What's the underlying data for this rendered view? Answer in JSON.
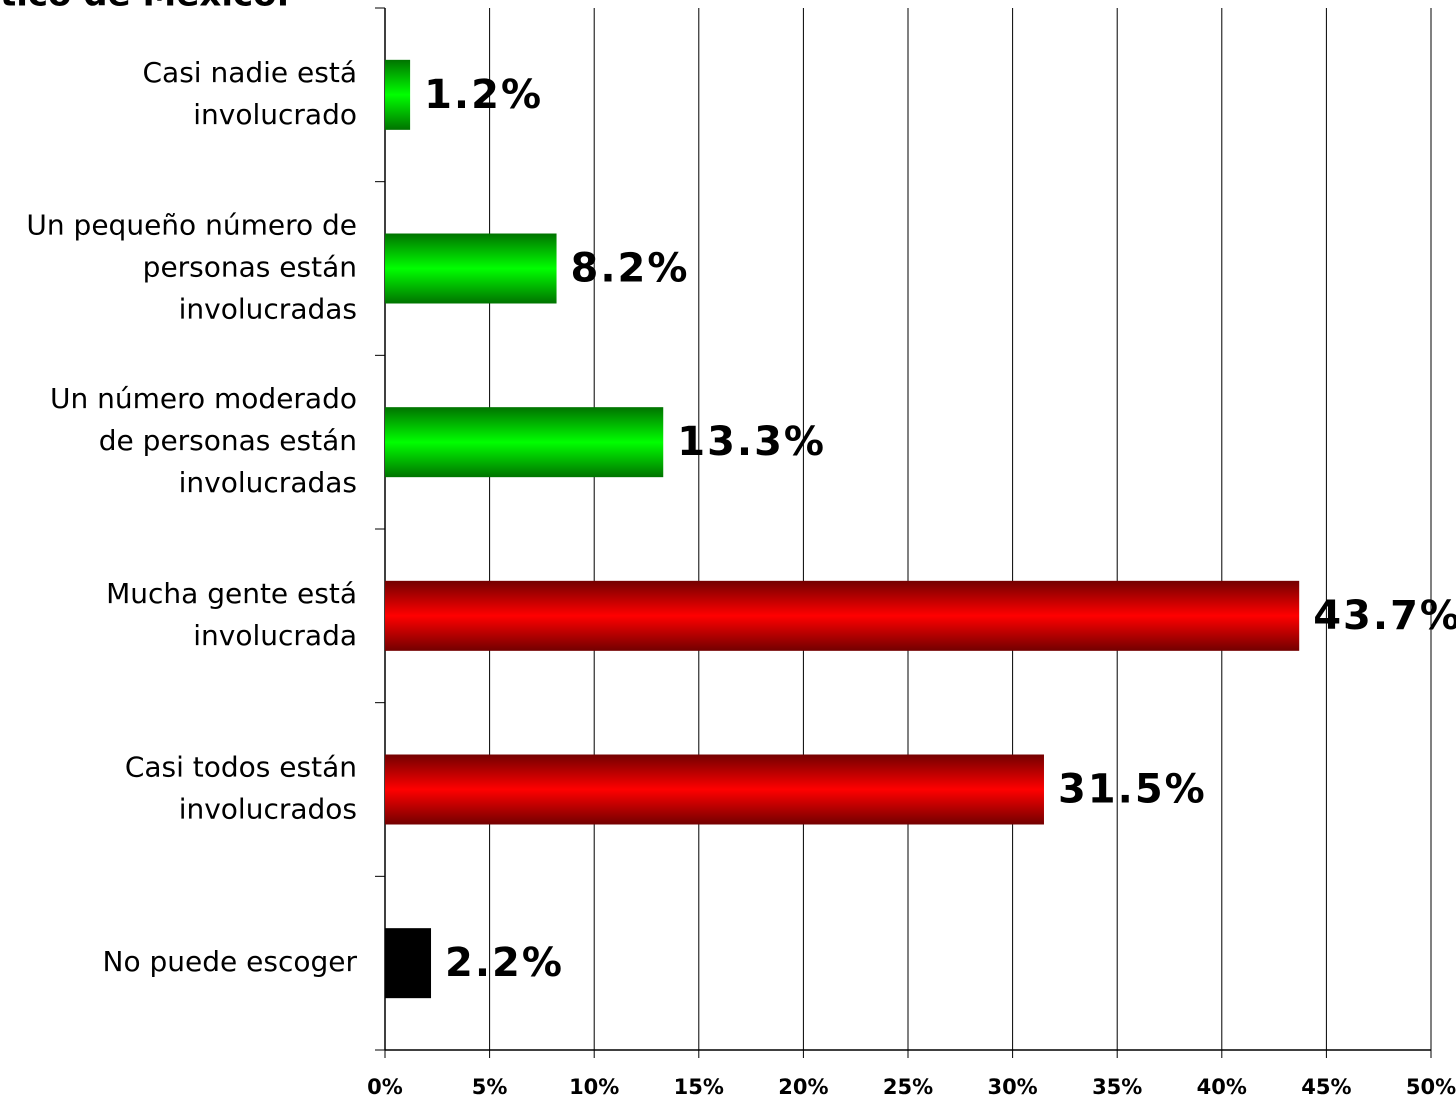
{
  "chart_data": {
    "type": "barh",
    "title": "tico de México.",
    "categories": [
      [
        "Casi nadie está",
        "involucrado"
      ],
      [
        "Un pequeño número de",
        "personas están",
        "involucradas"
      ],
      [
        "Un número moderado",
        "de personas están",
        "involucradas"
      ],
      [
        "Mucha gente está",
        "involucrada"
      ],
      [
        "Casi todos están",
        "involucrados"
      ],
      [
        "No puede escoger"
      ]
    ],
    "values": [
      1.2,
      8.2,
      13.3,
      43.7,
      31.5,
      2.2
    ],
    "value_labels": [
      "1.2%",
      "8.2%",
      "13.3%",
      "43.7%",
      "31.5%",
      "2.2%"
    ],
    "colors": [
      "#00ff00",
      "#00ff00",
      "#00ff00",
      "#ff0000",
      "#ff0000",
      "#000000"
    ],
    "xlim": [
      0,
      50
    ],
    "xticks": [
      {
        "value": 0,
        "label": "0%"
      },
      {
        "value": 5,
        "label": "5%"
      },
      {
        "value": 10,
        "label": "10%"
      },
      {
        "value": 15,
        "label": "15%"
      },
      {
        "value": 20,
        "label": "20%"
      },
      {
        "value": 25,
        "label": "25%"
      },
      {
        "value": 30,
        "label": "30%"
      },
      {
        "value": 35,
        "label": "35%"
      },
      {
        "value": 40,
        "label": "40%"
      },
      {
        "value": 45,
        "label": "45%"
      },
      {
        "value": 50,
        "label": "50%"
      }
    ],
    "grid": true
  }
}
